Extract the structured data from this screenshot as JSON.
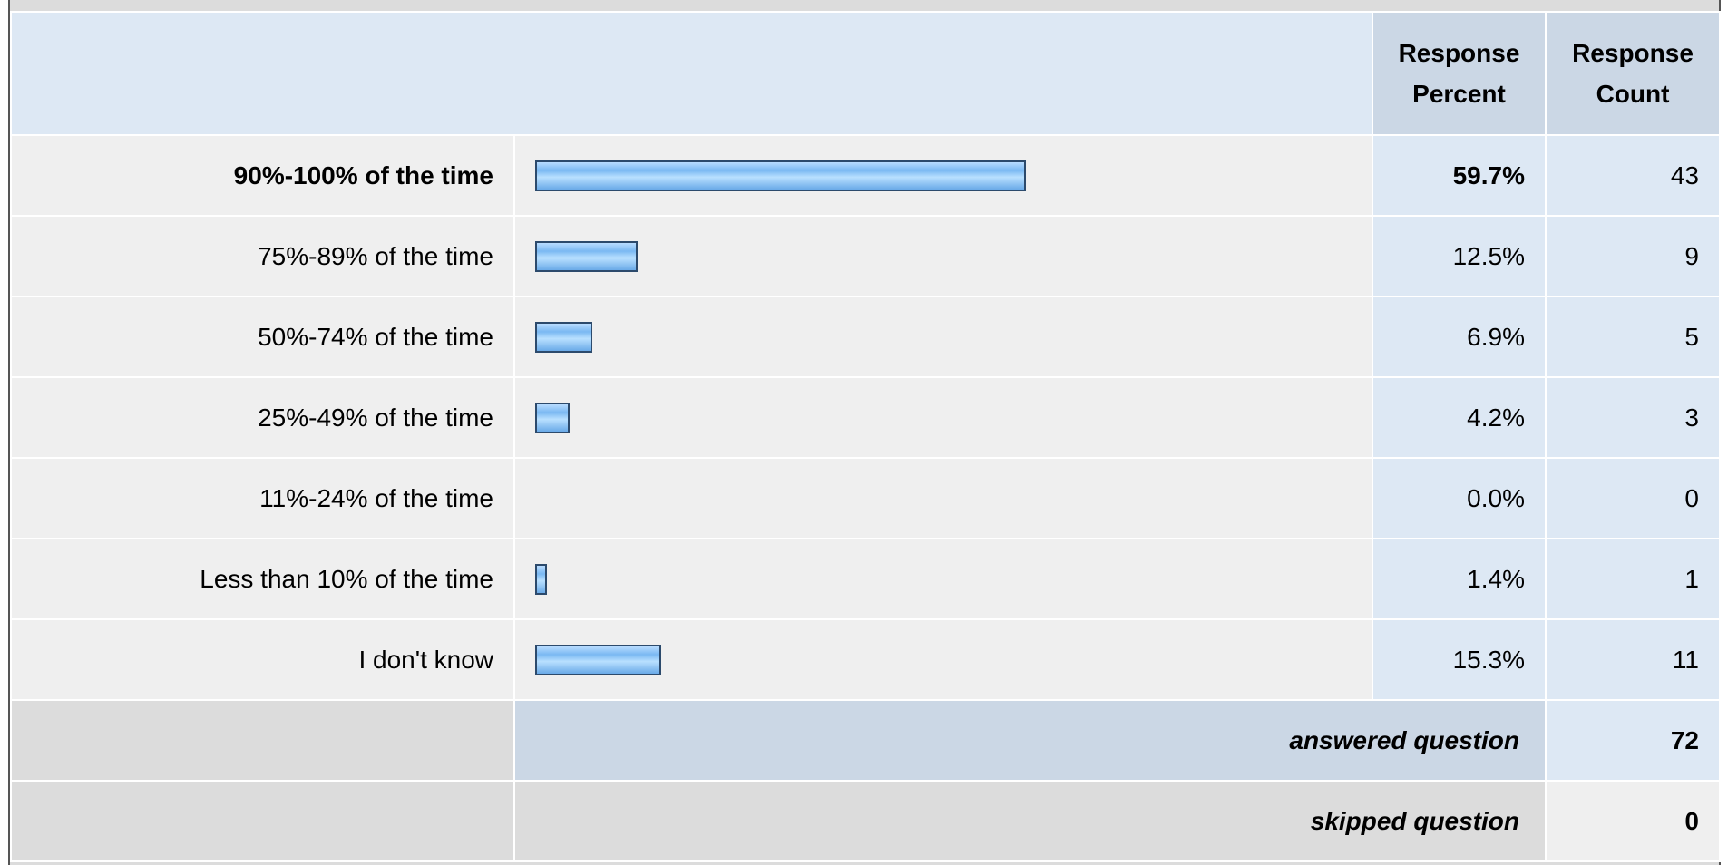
{
  "table": {
    "headers": [
      "Response Percent",
      "Response Count"
    ],
    "rows": [
      {
        "label": "90%-100% of the time",
        "percent": 59.7,
        "percent_label": "59.7%",
        "count": 43
      },
      {
        "label": "75%-89% of the time",
        "percent": 12.5,
        "percent_label": "12.5%",
        "count": 9
      },
      {
        "label": "50%-74% of the time",
        "percent": 6.9,
        "percent_label": "6.9%",
        "count": 5
      },
      {
        "label": "25%-49% of the time",
        "percent": 4.2,
        "percent_label": "4.2%",
        "count": 3
      },
      {
        "label": "11%-24% of the time",
        "percent": 0.0,
        "percent_label": "0.0%",
        "count": 0
      },
      {
        "label": "Less than 10% of the time",
        "percent": 1.4,
        "percent_label": "1.4%",
        "count": 1
      },
      {
        "label": "I don't know",
        "percent": 15.3,
        "percent_label": "15.3%",
        "count": 11
      }
    ],
    "answered": {
      "label": "answered question",
      "value": 72
    },
    "skipped": {
      "label": "skipped question",
      "value": 0
    }
  }
}
